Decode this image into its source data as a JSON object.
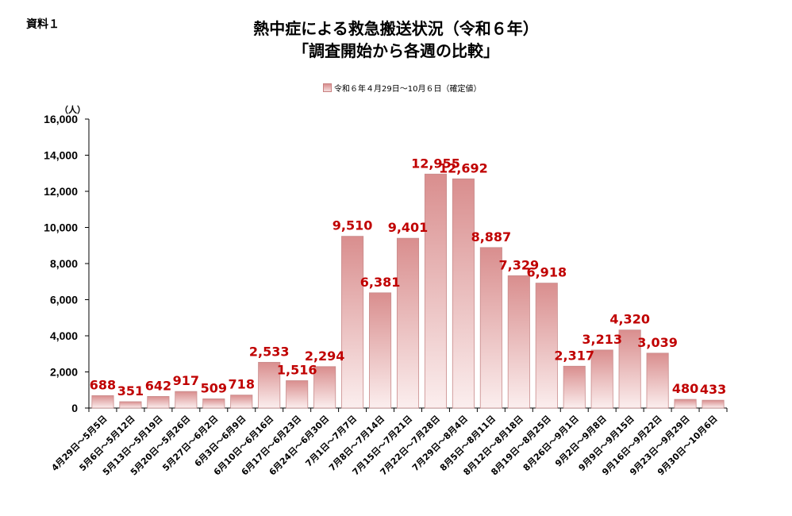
{
  "header": {
    "doc_label": "資料１",
    "title_line1": "熱中症による救急搬送状況（令和６年）",
    "title_line2": "「調査開始から各週の比較」"
  },
  "chart_data": {
    "type": "bar",
    "legend": [
      "令和６年４月29日～10月６日（確定値）"
    ],
    "unit_label": "（人）",
    "ylim": [
      0,
      16000
    ],
    "y_ticks": [
      "0",
      "2,000",
      "4,000",
      "6,000",
      "8,000",
      "10,000",
      "12,000",
      "14,000",
      "16,000"
    ],
    "categories": [
      "4月29日～5月5日",
      "5月6日～5月12日",
      "5月13日～5月19日",
      "5月20日～5月26日",
      "5月27日～6月2日",
      "6月3日～6月9日",
      "6月10日～6月16日",
      "6月17日～6月23日",
      "6月24日～6月30日",
      "7月1日～7月7日",
      "7月8日～7月14日",
      "7月15日～7月21日",
      "7月22日～7月28日",
      "7月29日～8月4日",
      "8月5日～8月11日",
      "8月12日～8月18日",
      "8月19日～8月25日",
      "8月26日～9月1日",
      "9月2日～9月8日",
      "9月9日～9月15日",
      "9月16日～9月22日",
      "9月23日～9月29日",
      "9月30日～10月6日"
    ],
    "values": [
      688,
      351,
      642,
      917,
      509,
      718,
      2533,
      1516,
      2294,
      9510,
      6381,
      9401,
      12955,
      12692,
      8887,
      7329,
      6918,
      2317,
      3213,
      4320,
      3039,
      480,
      433
    ],
    "value_labels": [
      "688",
      "351",
      "642",
      "917",
      "509",
      "718",
      "2,533",
      "1,516",
      "2,294",
      "9,510",
      "6,381",
      "9,401",
      "12,955",
      "12,692",
      "8,887",
      "7,329",
      "6,918",
      "2,317",
      "3,213",
      "4,320",
      "3,039",
      "480",
      "433"
    ],
    "bar_color_top": "#d98e8e",
    "bar_color_bottom": "#fbeeee",
    "label_color": "#c00000",
    "grid": false
  }
}
